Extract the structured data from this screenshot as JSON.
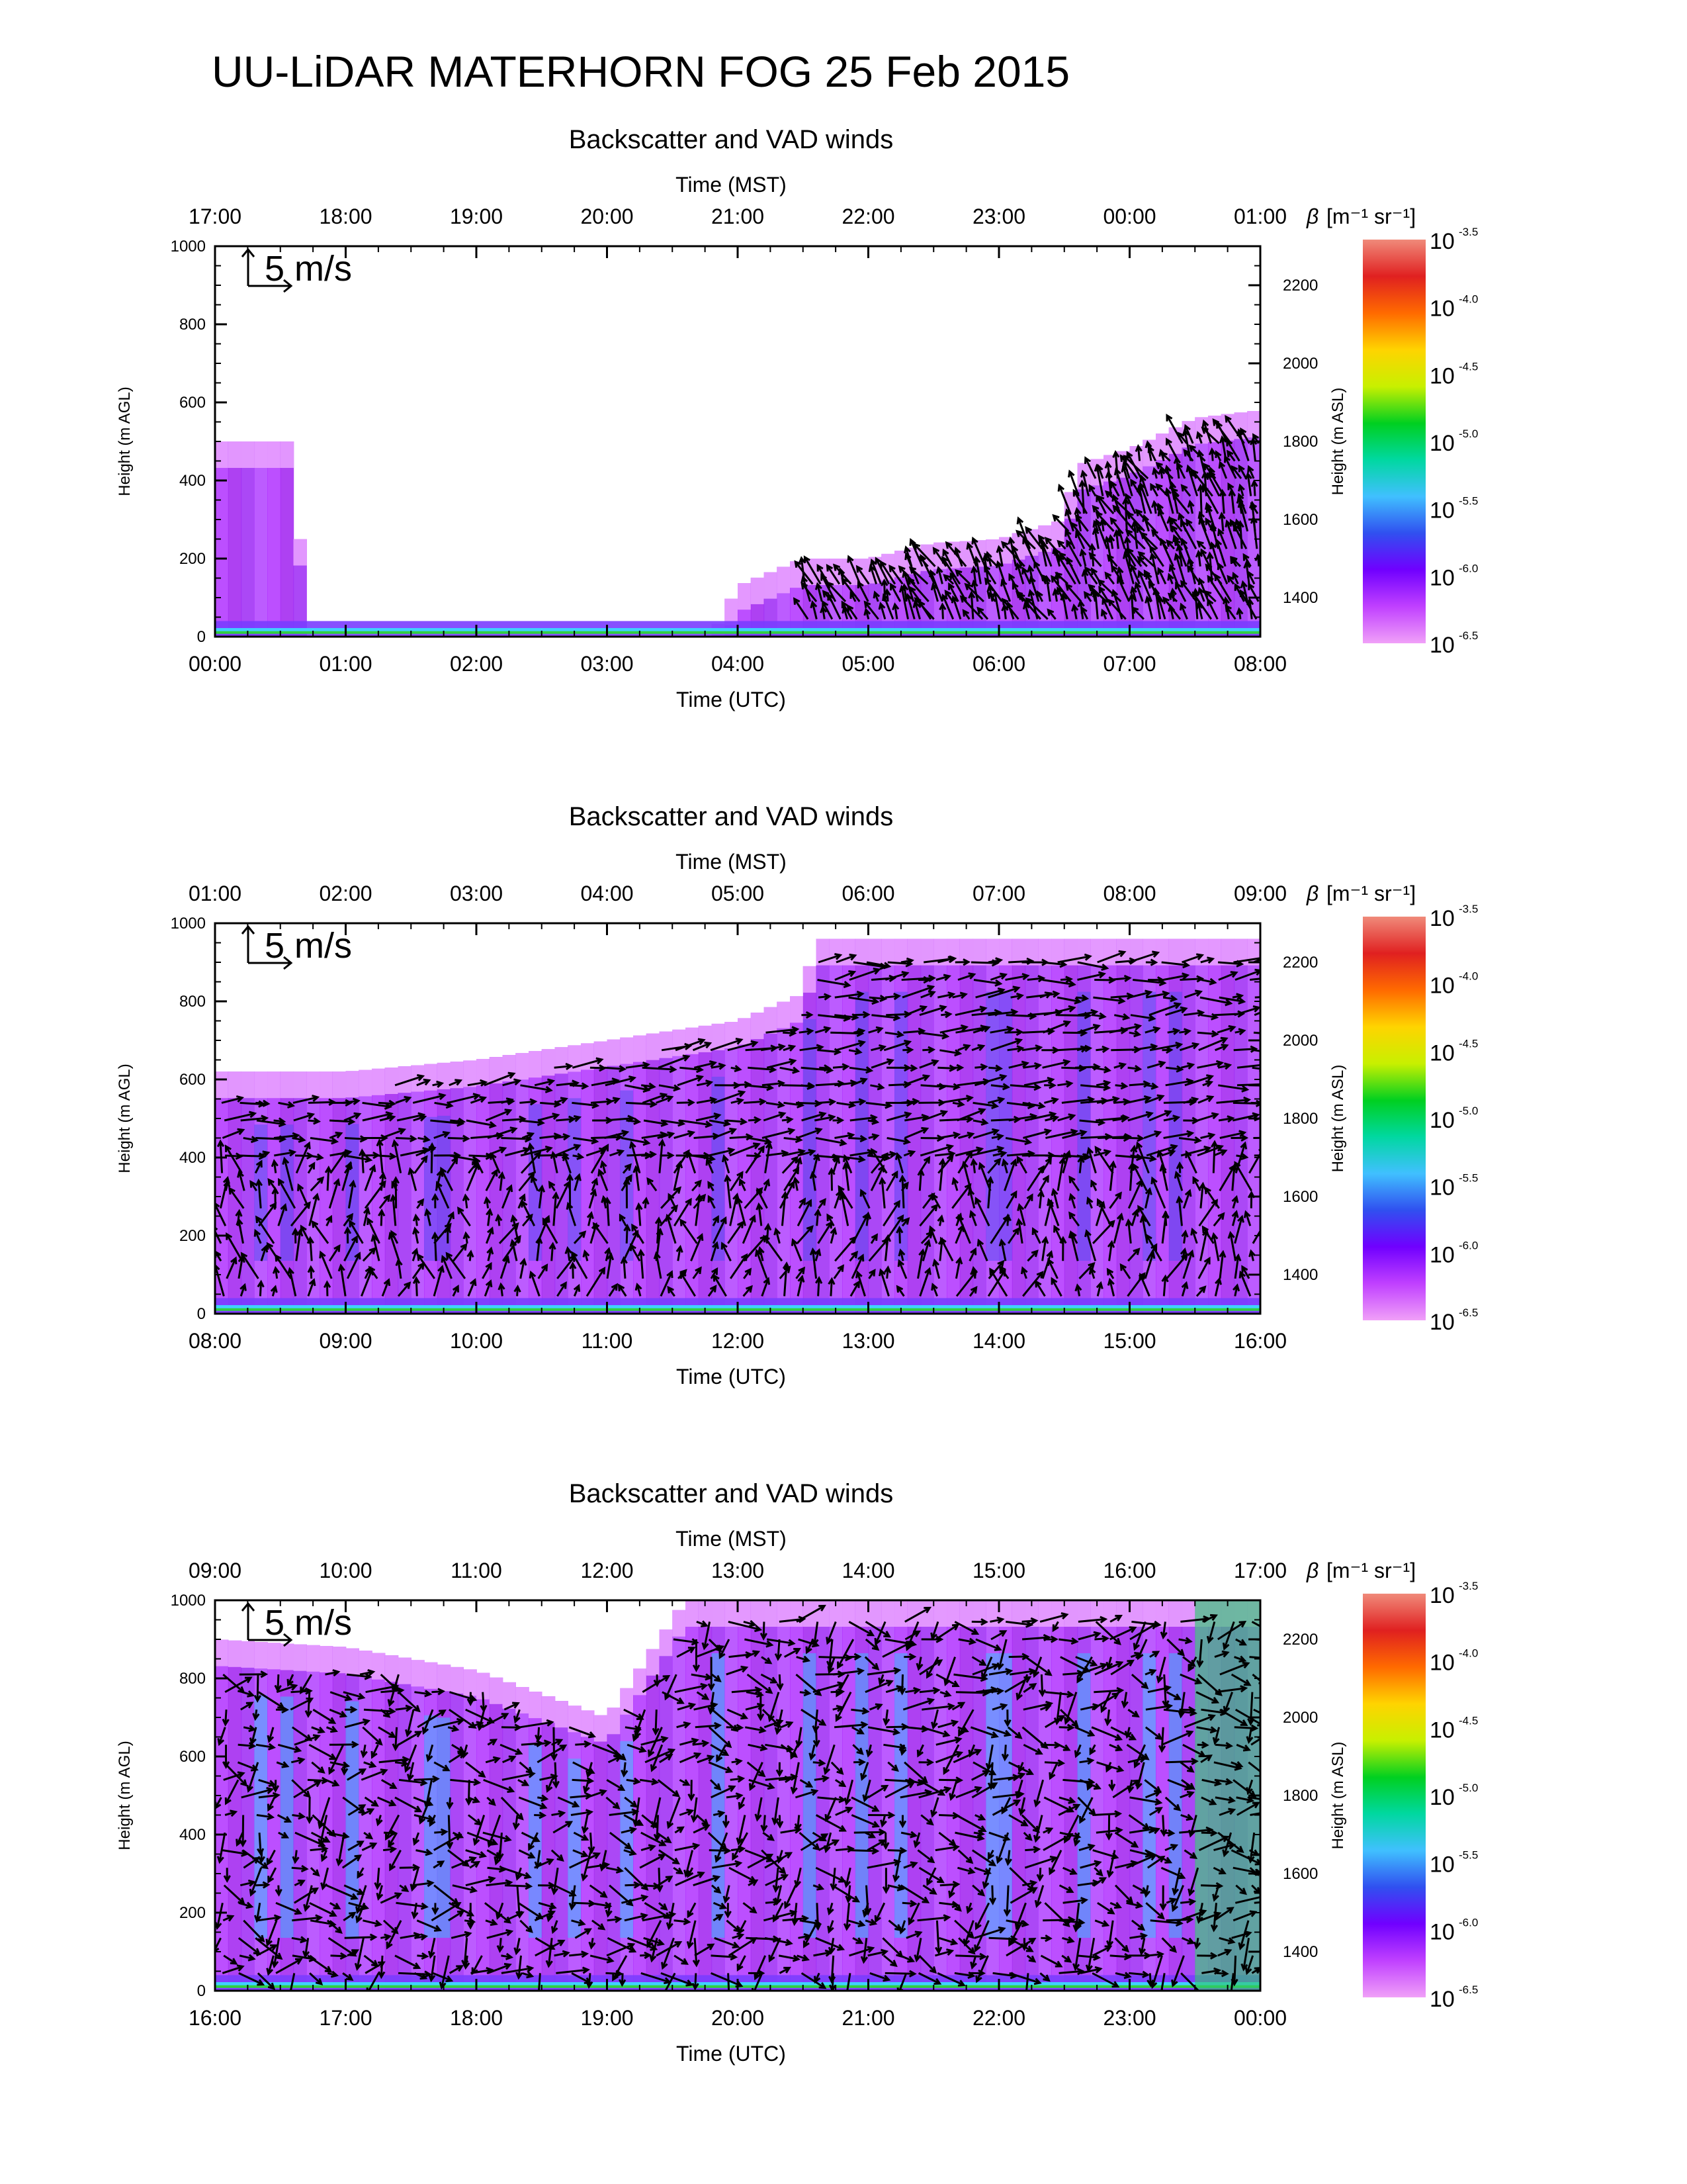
{
  "title": "UU-LiDAR MATERHORN FOG  25 Feb 2015",
  "colorbar": {
    "label_symbol": "β",
    "label_units": "[m⁻¹ sr⁻¹]",
    "base": "10",
    "exponents": [
      "-3.5",
      "-4.0",
      "-4.5",
      "-5.0",
      "-5.5",
      "-6.0",
      "-6.5"
    ],
    "colors_top_to_bottom": [
      "#f08a7a",
      "#e02020",
      "#ff6a00",
      "#ffd400",
      "#c8f000",
      "#00d020",
      "#00d8a0",
      "#40c0ff",
      "#3050f0",
      "#7000ff",
      "#c040ff",
      "#f0a0f8"
    ]
  },
  "chart_data": [
    {
      "type": "heatmap",
      "title": "Backscatter and VAD winds",
      "top_axis_label": "Time (MST)",
      "top_ticks": [
        "17:00",
        "18:00",
        "19:00",
        "20:00",
        "21:00",
        "22:00",
        "23:00",
        "00:00",
        "01:00"
      ],
      "xlabel": "Time (UTC)",
      "x_ticks": [
        "00:00",
        "01:00",
        "02:00",
        "03:00",
        "04:00",
        "05:00",
        "06:00",
        "07:00",
        "08:00"
      ],
      "xlim_utc_hours": [
        0,
        8
      ],
      "ylabel": "Height (m AGL)",
      "y_ticks": [
        0,
        200,
        400,
        600,
        800,
        1000
      ],
      "ylim": [
        0,
        1000
      ],
      "y2label": "Height (m ASL)",
      "y2_ticks": [
        1400,
        1600,
        1800,
        2000,
        2200
      ],
      "y2lim": [
        1300,
        2300
      ],
      "scale_arrow_label": "5 m/s",
      "cloud_top_agl_by_hour": [
        [
          0.0,
          500
        ],
        [
          0.6,
          500
        ],
        [
          0.7,
          0
        ],
        [
          3.8,
          0
        ],
        [
          4.0,
          130
        ],
        [
          4.5,
          200
        ],
        [
          5.0,
          200
        ],
        [
          5.5,
          240
        ],
        [
          6.0,
          250
        ],
        [
          6.5,
          300
        ],
        [
          6.6,
          440
        ],
        [
          7.0,
          480
        ],
        [
          7.5,
          560
        ],
        [
          8.0,
          580
        ]
      ],
      "wind_arrows_start_utc": 4.5
    },
    {
      "type": "heatmap",
      "title": "Backscatter and VAD winds",
      "top_axis_label": "Time (MST)",
      "top_ticks": [
        "01:00",
        "02:00",
        "03:00",
        "04:00",
        "05:00",
        "06:00",
        "07:00",
        "08:00",
        "09:00"
      ],
      "xlabel": "Time (UTC)",
      "x_ticks": [
        "08:00",
        "09:00",
        "10:00",
        "11:00",
        "12:00",
        "13:00",
        "14:00",
        "15:00",
        "16:00"
      ],
      "xlim_utc_hours": [
        8,
        16
      ],
      "ylabel": "Height (m AGL)",
      "y_ticks": [
        0,
        200,
        400,
        600,
        800,
        1000
      ],
      "ylim": [
        0,
        1000
      ],
      "y2label": "Height (m ASL)",
      "y2_ticks": [
        1400,
        1600,
        1800,
        2000,
        2200
      ],
      "y2lim": [
        1300,
        2300
      ],
      "scale_arrow_label": "5 m/s",
      "cloud_top_agl_by_hour": [
        [
          8.0,
          620
        ],
        [
          9.0,
          620
        ],
        [
          10.0,
          650
        ],
        [
          11.0,
          700
        ],
        [
          12.0,
          750
        ],
        [
          12.5,
          820
        ],
        [
          12.6,
          960
        ],
        [
          16.0,
          960
        ]
      ],
      "wind_arrows_start_utc": 8.0
    },
    {
      "type": "heatmap",
      "title": "Backscatter and VAD winds",
      "top_axis_label": "Time (MST)",
      "top_ticks": [
        "09:00",
        "10:00",
        "11:00",
        "12:00",
        "13:00",
        "14:00",
        "15:00",
        "16:00",
        "17:00"
      ],
      "xlabel": "Time (UTC)",
      "x_ticks": [
        "16:00",
        "17:00",
        "18:00",
        "19:00",
        "20:00",
        "21:00",
        "22:00",
        "23:00",
        "00:00"
      ],
      "xlim_utc_hours": [
        16,
        24
      ],
      "ylabel": "Height (m AGL)",
      "y_ticks": [
        0,
        200,
        400,
        600,
        800,
        1000
      ],
      "ylim": [
        0,
        1000
      ],
      "y2label": "Height (m ASL)",
      "y2_ticks": [
        1400,
        1600,
        1800,
        2000,
        2200
      ],
      "y2lim": [
        1300,
        2300
      ],
      "scale_arrow_label": "5 m/s",
      "cloud_top_agl_by_hour": [
        [
          16.0,
          900
        ],
        [
          17.0,
          880
        ],
        [
          18.0,
          820
        ],
        [
          19.0,
          700
        ],
        [
          19.6,
          1000
        ],
        [
          24.0,
          1000
        ]
      ],
      "wind_arrows_start_utc": 16.0
    }
  ]
}
